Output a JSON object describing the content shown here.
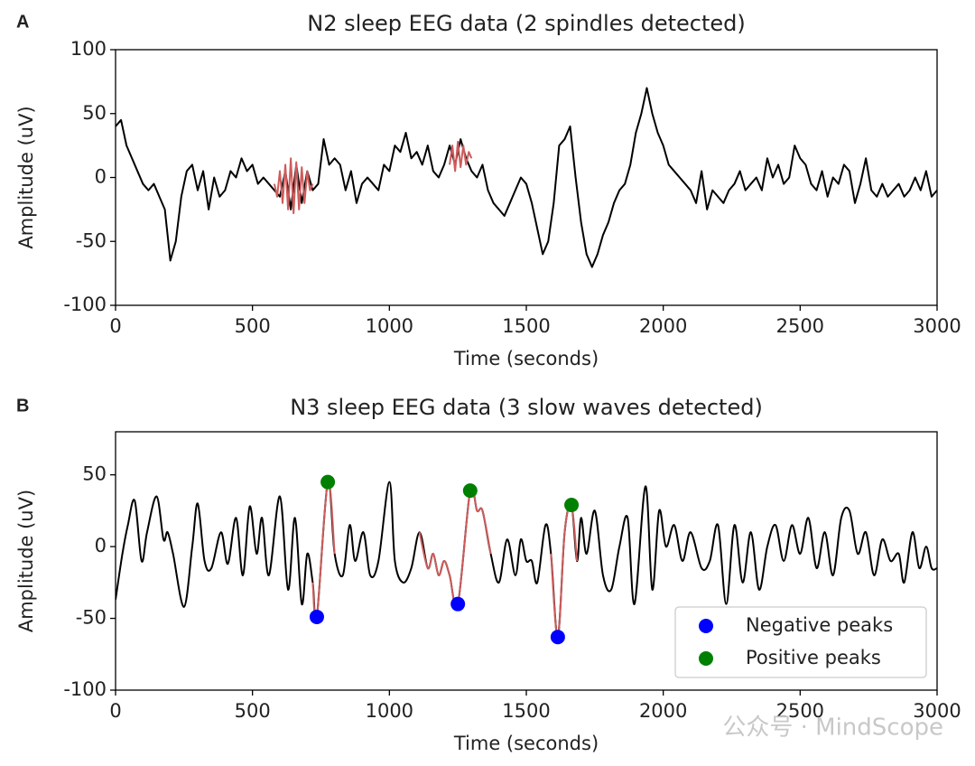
{
  "chart_data": [
    {
      "type": "line",
      "panel_label": "A",
      "title": "N2 sleep EEG data (2 spindles detected)",
      "xlabel": "Time (seconds)",
      "ylabel": "Amplitude (uV)",
      "xlim": [
        0,
        3000
      ],
      "ylim": [
        -100,
        100
      ],
      "xticks": [
        0,
        500,
        1000,
        1500,
        2000,
        2500,
        3000
      ],
      "yticks": [
        -100,
        -50,
        0,
        50,
        100
      ],
      "smooth": false,
      "series": [
        {
          "color": "#000000",
          "x": [
            0,
            20,
            40,
            60,
            80,
            100,
            120,
            140,
            160,
            180,
            200,
            220,
            240,
            260,
            280,
            300,
            320,
            340,
            360,
            380,
            400,
            420,
            440,
            460,
            480,
            500,
            520,
            540,
            560,
            580,
            600,
            620,
            640,
            660,
            680,
            700,
            720,
            740,
            760,
            780,
            800,
            820,
            840,
            860,
            880,
            900,
            920,
            940,
            960,
            980,
            1000,
            1020,
            1040,
            1060,
            1080,
            1100,
            1120,
            1140,
            1160,
            1180,
            1200,
            1220,
            1240,
            1260,
            1280,
            1300,
            1320,
            1340,
            1360,
            1380,
            1400,
            1420,
            1440,
            1460,
            1480,
            1500,
            1520,
            1540,
            1560,
            1580,
            1600,
            1620,
            1640,
            1660,
            1680,
            1700,
            1720,
            1740,
            1760,
            1780,
            1800,
            1820,
            1840,
            1860,
            1880,
            1900,
            1920,
            1940,
            1960,
            1980,
            2000,
            2020,
            2040,
            2060,
            2080,
            2100,
            2120,
            2140,
            2160,
            2180,
            2200,
            2220,
            2240,
            2260,
            2280,
            2300,
            2320,
            2340,
            2360,
            2380,
            2400,
            2420,
            2440,
            2460,
            2480,
            2500,
            2520,
            2540,
            2560,
            2580,
            2600,
            2620,
            2640,
            2660,
            2680,
            2700,
            2720,
            2740,
            2760,
            2780,
            2800,
            2820,
            2840,
            2860,
            2880,
            2900,
            2920,
            2940,
            2960,
            2980,
            3000
          ],
          "values": [
            40,
            45,
            25,
            15,
            5,
            -5,
            -10,
            -5,
            -15,
            -25,
            -65,
            -50,
            -15,
            5,
            10,
            -10,
            5,
            -25,
            0,
            -15,
            -10,
            5,
            0,
            15,
            5,
            10,
            -5,
            0,
            -5,
            -10,
            -15,
            5,
            -25,
            10,
            -20,
            5,
            -10,
            -5,
            30,
            10,
            15,
            10,
            -10,
            5,
            -20,
            -5,
            0,
            -5,
            -10,
            10,
            5,
            25,
            20,
            35,
            15,
            20,
            10,
            25,
            5,
            0,
            10,
            25,
            10,
            30,
            15,
            5,
            0,
            10,
            -10,
            -20,
            -25,
            -30,
            -20,
            -10,
            0,
            -5,
            -20,
            -40,
            -60,
            -50,
            -20,
            25,
            30,
            40,
            0,
            -35,
            -60,
            -70,
            -60,
            -45,
            -35,
            -20,
            -10,
            -5,
            10,
            35,
            50,
            70,
            50,
            35,
            25,
            10,
            5,
            0,
            -5,
            -10,
            -20,
            5,
            -25,
            -10,
            -15,
            -20,
            -10,
            -5,
            5,
            -10,
            -5,
            0,
            -10,
            15,
            0,
            10,
            -5,
            0,
            25,
            15,
            10,
            -5,
            -10,
            5,
            -15,
            0,
            -5,
            10,
            5,
            -20,
            -5,
            15,
            -10,
            -15,
            -5,
            -15,
            -10,
            -5,
            -15,
            -10,
            0,
            -10,
            5,
            -15,
            -10
          ]
        },
        {
          "color": "#cd5c5c",
          "x": [
            580,
            590,
            600,
            610,
            620,
            630,
            640,
            650,
            660,
            670,
            680,
            690,
            700,
            710,
            720
          ],
          "values": [
            -5,
            -15,
            5,
            -20,
            10,
            -25,
            15,
            -28,
            12,
            -25,
            8,
            -20,
            5,
            -10,
            -5
          ]
        },
        {
          "color": "#cd5c5c",
          "x": [
            1220,
            1230,
            1240,
            1250,
            1260,
            1270,
            1280,
            1290,
            1300
          ],
          "values": [
            10,
            25,
            5,
            28,
            8,
            25,
            10,
            20,
            15
          ]
        }
      ]
    },
    {
      "type": "line",
      "panel_label": "B",
      "title": "N3 sleep EEG data (3 slow waves detected)",
      "xlabel": "Time (seconds)",
      "ylabel": "Amplitude (uV)",
      "xlim": [
        0,
        3000
      ],
      "ylim": [
        -100,
        80
      ],
      "xticks": [
        0,
        500,
        1000,
        1500,
        2000,
        2500,
        3000
      ],
      "yticks": [
        -100,
        -50,
        0,
        50
      ],
      "smooth": true,
      "legend": "lower right",
      "annotation": "公众号 · MindScope",
      "series": [
        {
          "color": "#000000",
          "x": [
            0,
            25,
            45,
            70,
            95,
            115,
            150,
            175,
            190,
            210,
            250,
            280,
            300,
            325,
            350,
            385,
            410,
            440,
            465,
            490,
            515,
            535,
            560,
            600,
            630,
            655,
            680,
            700,
            720,
            735,
            775,
            800,
            830,
            855,
            875,
            905,
            930,
            960,
            1000,
            1020,
            1050,
            1080,
            1110,
            1140,
            1160,
            1180,
            1200,
            1220,
            1250,
            1295,
            1320,
            1340,
            1370,
            1400,
            1430,
            1460,
            1480,
            1500,
            1520,
            1540,
            1570,
            1590,
            1615,
            1640,
            1665,
            1685,
            1700,
            1720,
            1750,
            1780,
            1810,
            1840,
            1870,
            1895,
            1935,
            1960,
            1985,
            2010,
            2040,
            2070,
            2100,
            2140,
            2170,
            2200,
            2230,
            2260,
            2290,
            2320,
            2350,
            2380,
            2410,
            2440,
            2470,
            2500,
            2530,
            2560,
            2590,
            2620,
            2650,
            2680,
            2710,
            2740,
            2770,
            2800,
            2830,
            2860,
            2880,
            2910,
            2935,
            2960,
            2980,
            3000
          ],
          "values": [
            -37,
            -5,
            15,
            32,
            -10,
            10,
            35,
            5,
            10,
            -5,
            -42,
            0,
            30,
            -10,
            -15,
            10,
            -12,
            20,
            -20,
            28,
            -5,
            20,
            -20,
            35,
            -30,
            20,
            -40,
            -5,
            -25,
            -49,
            45,
            -5,
            -20,
            15,
            -10,
            10,
            -20,
            -10,
            45,
            -10,
            -25,
            -15,
            10,
            -15,
            -5,
            -20,
            -10,
            -20,
            -40,
            39,
            25,
            25,
            -5,
            -25,
            5,
            -20,
            5,
            -10,
            -10,
            -25,
            15,
            -5,
            -63,
            10,
            29,
            -10,
            20,
            -5,
            25,
            -20,
            -30,
            0,
            20,
            -40,
            42,
            -30,
            25,
            0,
            15,
            -10,
            10,
            -15,
            -10,
            15,
            -40,
            15,
            -25,
            10,
            -30,
            0,
            15,
            -10,
            15,
            -5,
            20,
            -15,
            10,
            -20,
            20,
            25,
            -5,
            10,
            -20,
            5,
            -10,
            -5,
            -25,
            10,
            -15,
            0,
            -15,
            -15
          ]
        },
        {
          "color": "#cd5c5c",
          "x": [
            720,
            735,
            775,
            800
          ],
          "values": [
            -25,
            -49,
            45,
            -5
          ]
        },
        {
          "color": "#cd5c5c",
          "x": [
            1110,
            1140,
            1160,
            1180,
            1200,
            1220,
            1250,
            1295,
            1320,
            1340,
            1370
          ],
          "values": [
            10,
            -15,
            -5,
            -20,
            -10,
            -20,
            -40,
            39,
            25,
            25,
            -5
          ]
        },
        {
          "color": "#cd5c5c",
          "x": [
            1590,
            1615,
            1640,
            1665,
            1685
          ],
          "values": [
            -5,
            -63,
            10,
            29,
            -10
          ]
        },
        {
          "type": "scatter",
          "name": "Negative peaks",
          "color": "#0000ff",
          "x": [
            735,
            1250,
            1615
          ],
          "values": [
            -49,
            -40,
            -63
          ]
        },
        {
          "type": "scatter",
          "name": "Positive peaks",
          "color": "#008000",
          "x": [
            775,
            1295,
            1665
          ],
          "values": [
            45,
            39,
            29
          ]
        }
      ]
    }
  ]
}
